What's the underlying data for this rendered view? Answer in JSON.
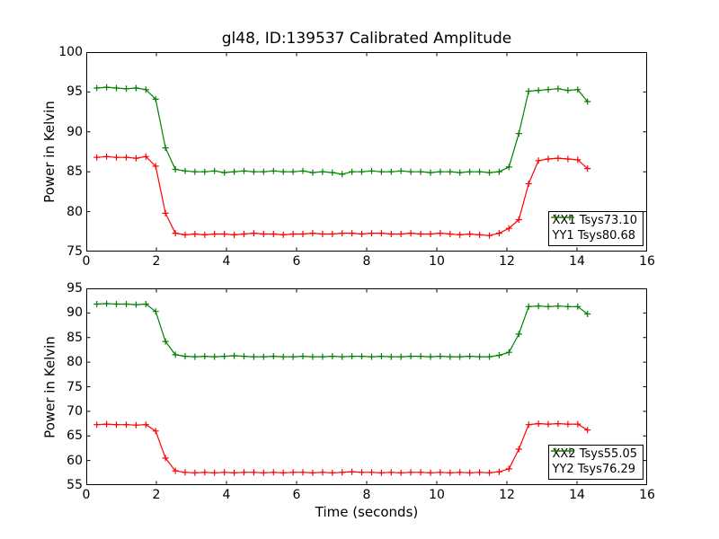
{
  "figure": {
    "background": "#ffffff"
  },
  "chart_data": [
    {
      "type": "line",
      "title": "gl48, ID:139537 Calibrated Amplitude",
      "xlabel": "",
      "ylabel": "Power in Kelvin",
      "xlim": [
        0,
        16
      ],
      "ylim": [
        75,
        100
      ],
      "xticks": [
        0,
        2,
        4,
        6,
        8,
        10,
        12,
        14,
        16
      ],
      "yticks": [
        75,
        80,
        85,
        90,
        95,
        100
      ],
      "grid": false,
      "legend_position": "lower right",
      "marker": "plus",
      "x": [
        0.3,
        0.58,
        0.86,
        1.14,
        1.42,
        1.7,
        1.98,
        2.26,
        2.54,
        2.82,
        3.1,
        3.38,
        3.66,
        3.94,
        4.22,
        4.5,
        4.78,
        5.06,
        5.34,
        5.62,
        5.9,
        6.18,
        6.46,
        6.74,
        7.02,
        7.3,
        7.58,
        7.86,
        8.14,
        8.42,
        8.7,
        8.98,
        9.26,
        9.54,
        9.82,
        10.1,
        10.38,
        10.66,
        10.94,
        11.22,
        11.5,
        11.78,
        12.06,
        12.34,
        12.62,
        12.9,
        13.18,
        13.46,
        13.74,
        14.02,
        14.3
      ],
      "series": [
        {
          "name": "XX1 Tsys73.10",
          "color": "#ff0000",
          "values": [
            86.8,
            86.9,
            86.8,
            86.8,
            86.7,
            86.9,
            85.7,
            79.8,
            77.3,
            77.1,
            77.2,
            77.1,
            77.2,
            77.2,
            77.1,
            77.2,
            77.3,
            77.2,
            77.2,
            77.1,
            77.2,
            77.2,
            77.3,
            77.2,
            77.2,
            77.3,
            77.3,
            77.2,
            77.3,
            77.3,
            77.2,
            77.2,
            77.3,
            77.2,
            77.2,
            77.3,
            77.2,
            77.1,
            77.2,
            77.1,
            77.0,
            77.3,
            77.9,
            79.0,
            83.5,
            86.4,
            86.6,
            86.7,
            86.6,
            86.5,
            85.4
          ]
        },
        {
          "name": "YY1 Tsys80.68",
          "color": "#008000",
          "values": [
            95.5,
            95.6,
            95.5,
            95.4,
            95.5,
            95.3,
            94.1,
            88.0,
            85.3,
            85.1,
            85.0,
            85.0,
            85.1,
            84.9,
            85.0,
            85.1,
            85.0,
            85.0,
            85.1,
            85.0,
            85.0,
            85.1,
            84.9,
            85.0,
            84.9,
            84.7,
            85.0,
            85.0,
            85.1,
            85.0,
            85.0,
            85.1,
            85.0,
            85.0,
            84.9,
            85.0,
            85.0,
            84.9,
            85.0,
            85.0,
            84.9,
            85.0,
            85.6,
            89.8,
            95.1,
            95.2,
            95.3,
            95.4,
            95.2,
            95.3,
            93.8
          ]
        }
      ]
    },
    {
      "type": "line",
      "title": "",
      "xlabel": "Time (seconds)",
      "ylabel": "Power in Kelvin",
      "xlim": [
        0,
        16
      ],
      "ylim": [
        55,
        95
      ],
      "xticks": [
        0,
        2,
        4,
        6,
        8,
        10,
        12,
        14,
        16
      ],
      "yticks": [
        55,
        60,
        65,
        70,
        75,
        80,
        85,
        90,
        95
      ],
      "grid": false,
      "legend_position": "lower right",
      "marker": "plus",
      "x": [
        0.3,
        0.58,
        0.86,
        1.14,
        1.42,
        1.7,
        1.98,
        2.26,
        2.54,
        2.82,
        3.1,
        3.38,
        3.66,
        3.94,
        4.22,
        4.5,
        4.78,
        5.06,
        5.34,
        5.62,
        5.9,
        6.18,
        6.46,
        6.74,
        7.02,
        7.3,
        7.58,
        7.86,
        8.14,
        8.42,
        8.7,
        8.98,
        9.26,
        9.54,
        9.82,
        10.1,
        10.38,
        10.66,
        10.94,
        11.22,
        11.5,
        11.78,
        12.06,
        12.34,
        12.62,
        12.9,
        13.18,
        13.46,
        13.74,
        14.02,
        14.3
      ],
      "series": [
        {
          "name": "XX2 Tsys55.05",
          "color": "#ff0000",
          "values": [
            67.3,
            67.4,
            67.3,
            67.3,
            67.2,
            67.3,
            66.0,
            60.5,
            57.9,
            57.6,
            57.5,
            57.6,
            57.5,
            57.6,
            57.5,
            57.6,
            57.6,
            57.5,
            57.6,
            57.5,
            57.6,
            57.6,
            57.5,
            57.6,
            57.5,
            57.6,
            57.7,
            57.6,
            57.6,
            57.5,
            57.6,
            57.5,
            57.6,
            57.6,
            57.5,
            57.6,
            57.5,
            57.6,
            57.5,
            57.6,
            57.5,
            57.7,
            58.3,
            62.3,
            67.3,
            67.5,
            67.4,
            67.5,
            67.4,
            67.4,
            66.2
          ]
        },
        {
          "name": "YY2 Tsys76.29",
          "color": "#008000",
          "values": [
            91.8,
            91.9,
            91.8,
            91.8,
            91.7,
            91.8,
            90.3,
            84.2,
            81.5,
            81.2,
            81.1,
            81.2,
            81.1,
            81.2,
            81.3,
            81.2,
            81.1,
            81.1,
            81.2,
            81.1,
            81.1,
            81.2,
            81.1,
            81.1,
            81.2,
            81.1,
            81.2,
            81.2,
            81.1,
            81.2,
            81.1,
            81.1,
            81.2,
            81.2,
            81.1,
            81.2,
            81.1,
            81.1,
            81.2,
            81.1,
            81.1,
            81.4,
            82.0,
            85.7,
            91.3,
            91.4,
            91.3,
            91.4,
            91.3,
            91.3,
            89.8
          ]
        }
      ]
    }
  ]
}
